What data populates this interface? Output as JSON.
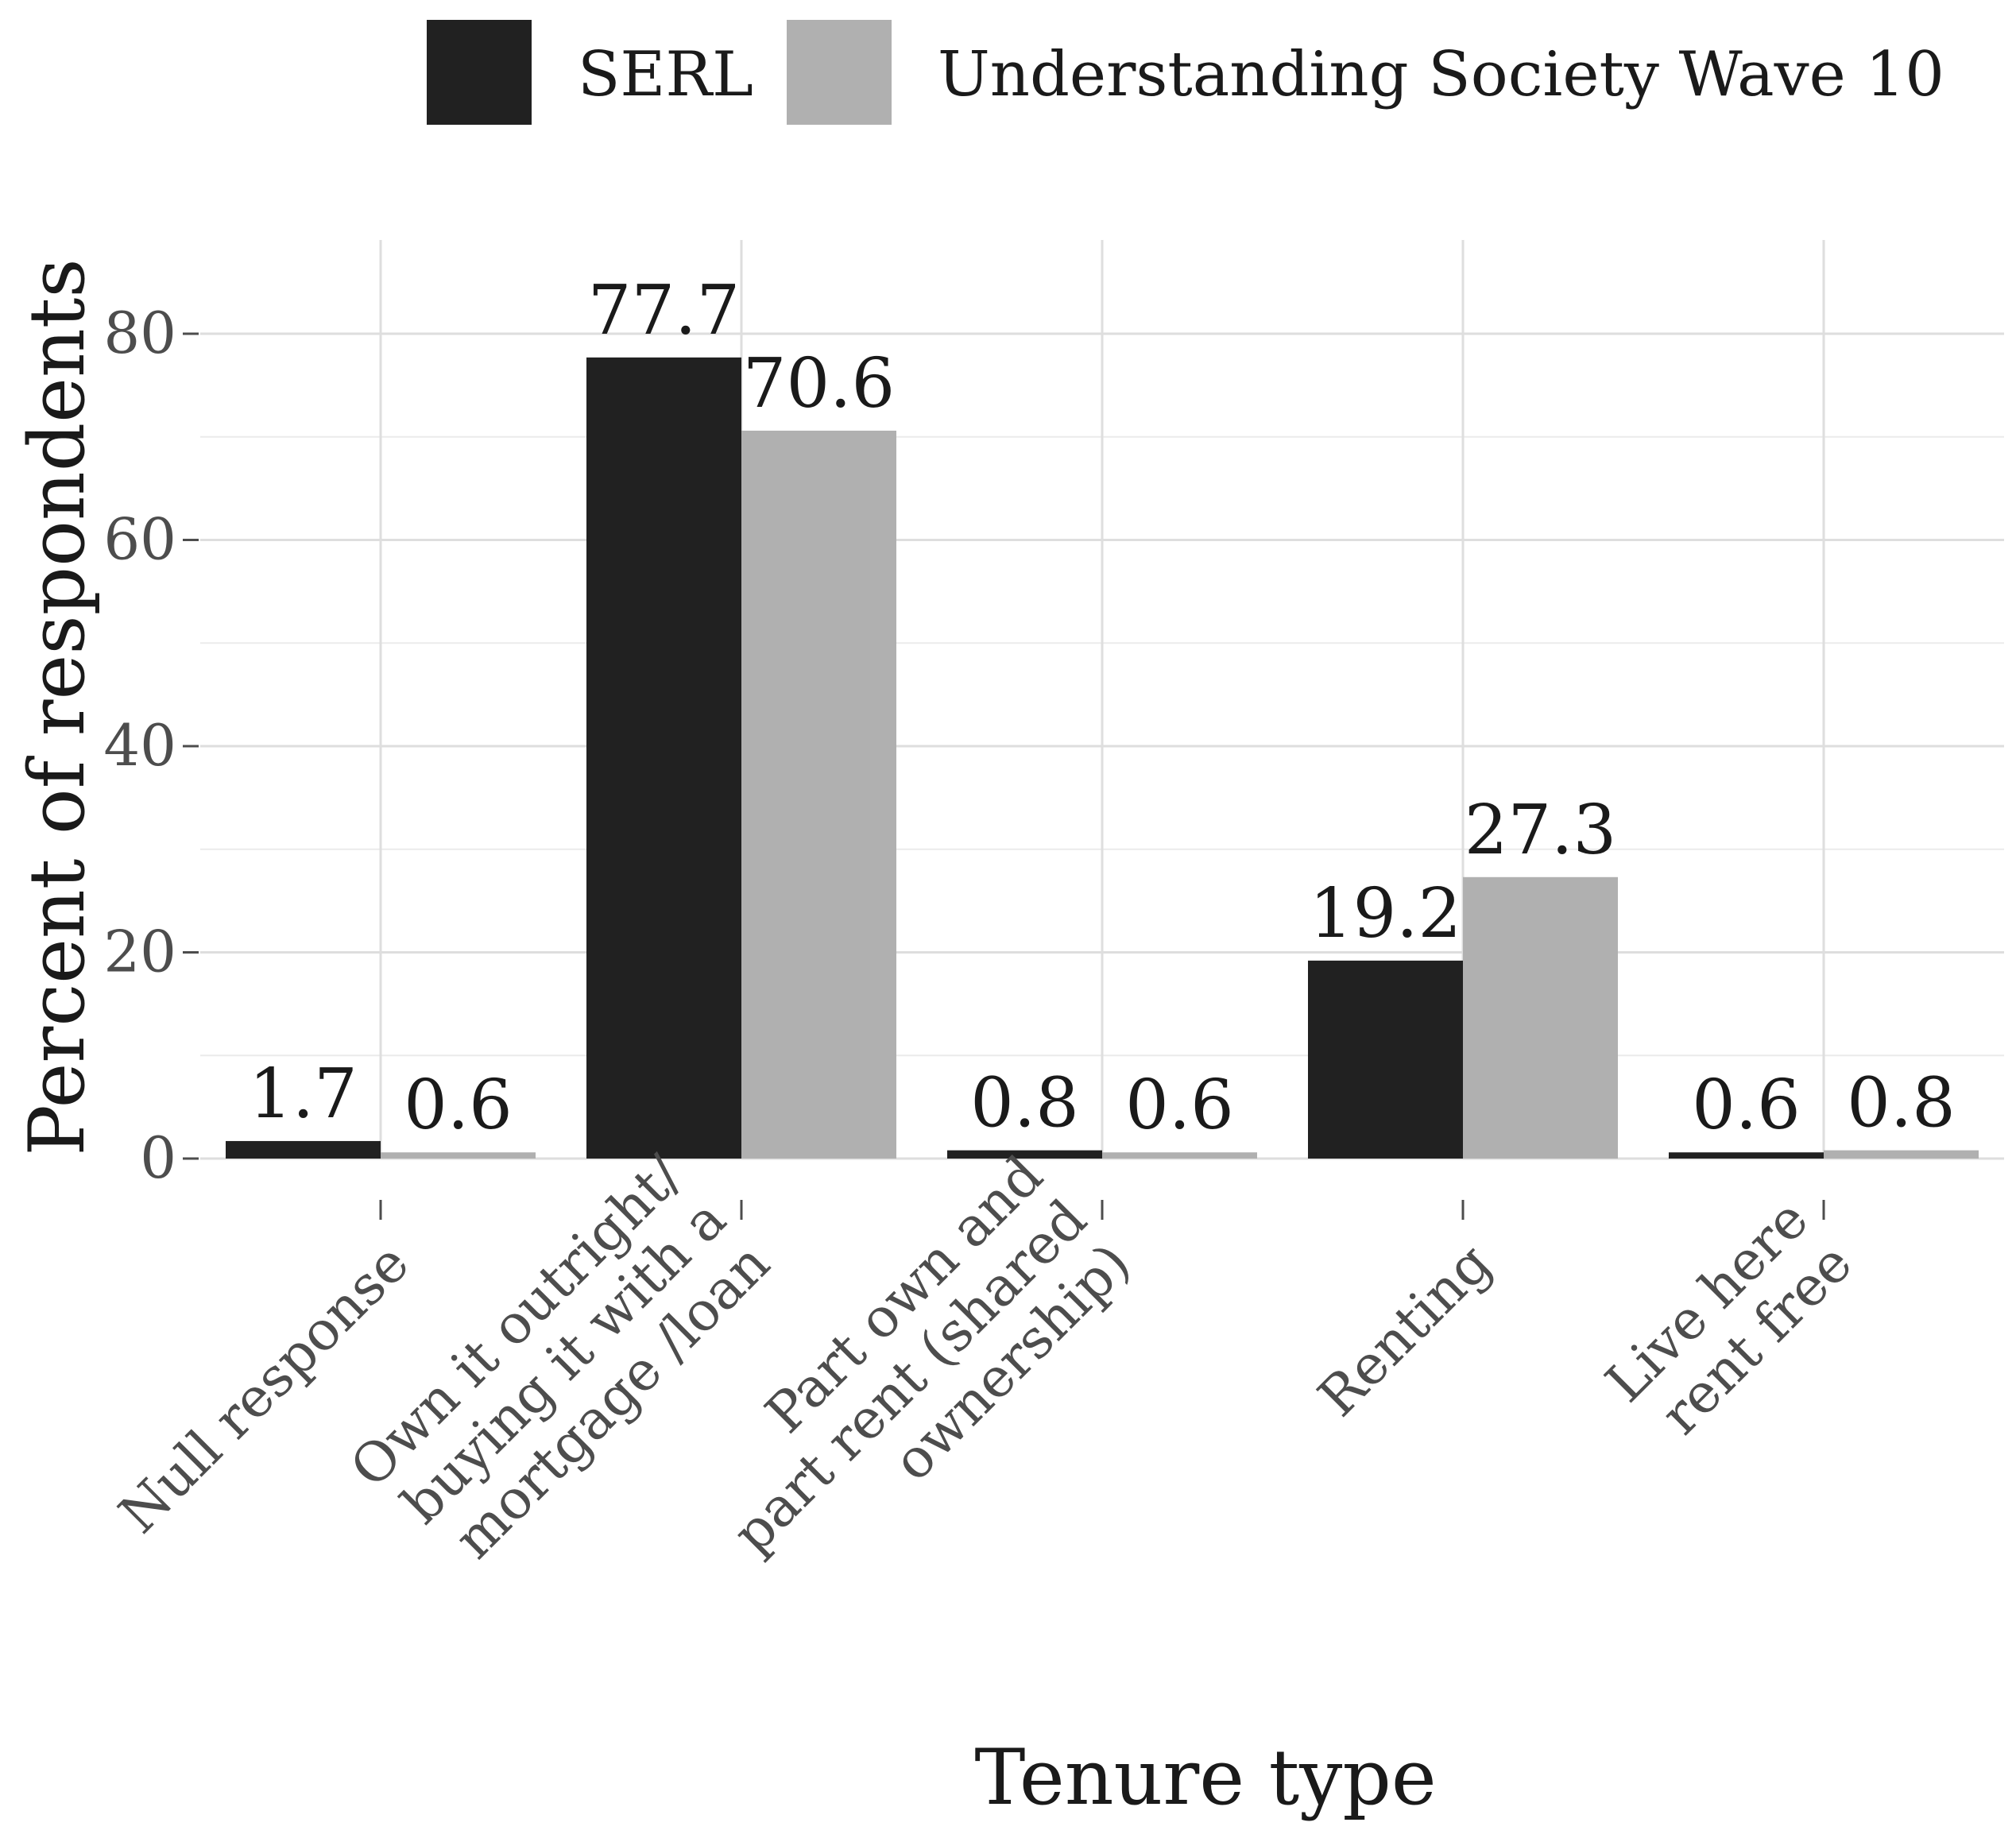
{
  "chart_data": {
    "type": "bar",
    "title": "",
    "xlabel": "Tenure type",
    "ylabel": "Percent of respondents",
    "ylim": [
      0,
      90
    ],
    "yticks": [
      0,
      20,
      40,
      60,
      80
    ],
    "grid": true,
    "legend_position": "top",
    "categories": [
      [
        "Null response"
      ],
      [
        "Own it outright/",
        "buying it with a",
        "mortgage /loan"
      ],
      [
        "Part own and",
        "part rent (shared",
        "ownership)"
      ],
      [
        "Renting"
      ],
      [
        "Live here",
        "rent free"
      ]
    ],
    "series": [
      {
        "name": "SERL",
        "color": "#212121",
        "values": [
          1.7,
          77.7,
          0.8,
          19.2,
          0.6
        ]
      },
      {
        "name": "Understanding Society Wave 10",
        "color": "#b0b0b0",
        "values": [
          0.6,
          70.6,
          0.6,
          27.3,
          0.8
        ]
      }
    ]
  }
}
